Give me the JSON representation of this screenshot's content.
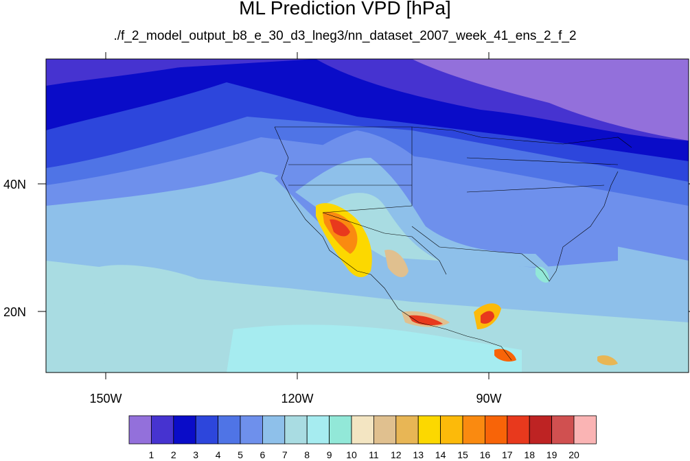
{
  "title": "ML Prediction VPD [hPa]",
  "subtitle": "./f_2_model_output_b8_e_30_d3_lneg3/nn_dataset_2007_week_41_ens_2_f_2",
  "map": {
    "lon_labels": [
      "150W",
      "120W",
      "90W"
    ],
    "lat_labels": [
      "40N",
      "20N"
    ]
  },
  "colorbar": {
    "levels": [
      "1",
      "2",
      "3",
      "4",
      "5",
      "6",
      "7",
      "8",
      "9",
      "10",
      "11",
      "12",
      "13",
      "14",
      "15",
      "16",
      "17",
      "18",
      "19",
      "20"
    ],
    "colors": [
      "#9370DB",
      "#4633D0",
      "#0A0CC8",
      "#2D46DC",
      "#4F74E6",
      "#6E90EC",
      "#8EC0EA",
      "#A9DCE2",
      "#A6ECF0",
      "#92E8D8",
      "#F3E5C2",
      "#E0C08F",
      "#E8B655",
      "#FCD800",
      "#FCBA0A",
      "#FA8A10",
      "#F86408",
      "#E8391D",
      "#BE2323",
      "#D05050",
      "#FAB4B4"
    ]
  }
}
